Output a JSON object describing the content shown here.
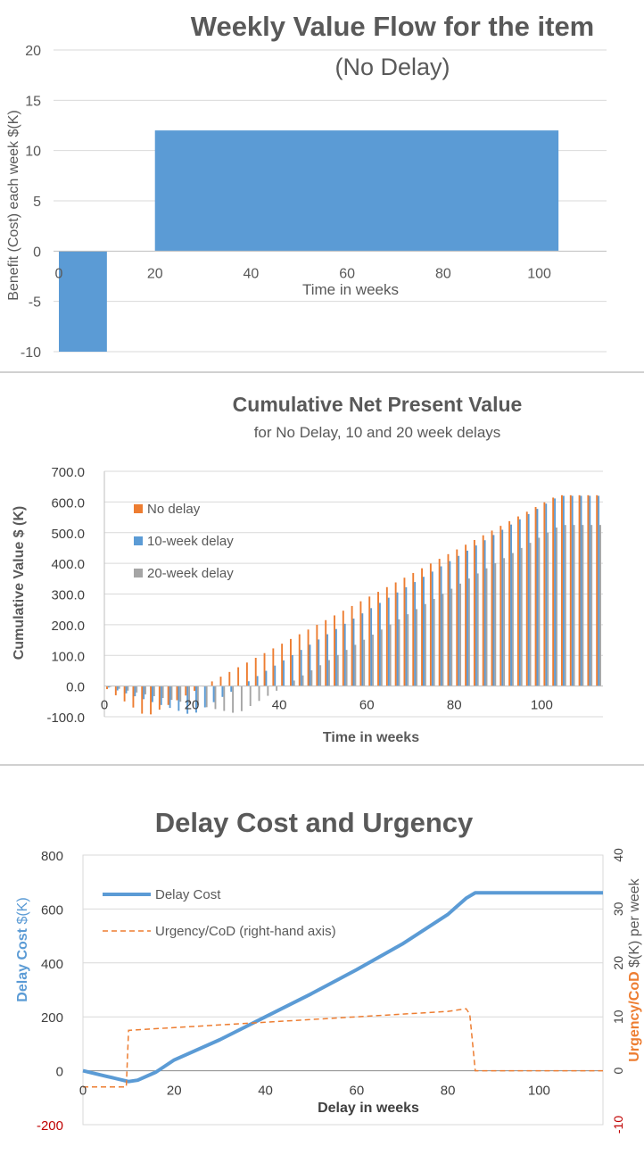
{
  "colors": {
    "blue": "#5b9bd5",
    "orange": "#ed7d31",
    "gray": "#a5a5a5",
    "red": "#c00000",
    "title_gray": "#595959",
    "grid": "#d9d9d9"
  },
  "chart_data": [
    {
      "type": "bar",
      "title": "Weekly Value Flow for the item",
      "subtitle": "(No Delay)",
      "xlabel": "Time in weeks",
      "ylabel": "Benefit (Cost) each week  $(K)",
      "xlim": [
        0,
        114
      ],
      "ylim": [
        -10,
        20
      ],
      "xticks": [
        0,
        20,
        40,
        60,
        80,
        100
      ],
      "yticks": [
        20,
        15,
        10,
        5,
        0,
        -5,
        -10
      ],
      "grid": true,
      "segments": [
        {
          "x_start": 0,
          "x_end": 10,
          "value": -10
        },
        {
          "x_start": 20,
          "x_end": 104,
          "value": 12
        }
      ]
    },
    {
      "type": "bar",
      "title": "Cumulative Net Present Value",
      "subtitle": "for No Delay, 10 and 20 week delays",
      "xlabel": "Time in weeks",
      "ylabel": "Cumulative Value  $ (K)",
      "xlim": [
        0,
        114
      ],
      "ylim": [
        -100,
        700
      ],
      "xticks": [
        0,
        20,
        40,
        60,
        80,
        100
      ],
      "yticks": [
        "700.0",
        "600.0",
        "500.0",
        "400.0",
        "300.0",
        "200.0",
        "100.0",
        "0.0",
        "-100.0"
      ],
      "legend_position": "top-left",
      "series": [
        {
          "name": "No delay",
          "delay_weeks": 0,
          "min_value": -100,
          "final_value": 622
        },
        {
          "name": "10-week delay",
          "delay_weeks": 10,
          "min_value": -95,
          "final_value": 620
        },
        {
          "name": "20-week delay",
          "delay_weeks": 20,
          "min_value": -90,
          "final_value": 525
        }
      ]
    },
    {
      "type": "line",
      "title": "Delay Cost and Urgency",
      "xlabel": "Delay in weeks",
      "ylabel_left": "Delay Cost $(K)",
      "ylabel_right": "Urgency/CoD  $(K) per week",
      "xlim": [
        0,
        114
      ],
      "ylim": [
        -200,
        800
      ],
      "y2lim": [
        -10,
        40
      ],
      "xticks": [
        0,
        20,
        40,
        60,
        80,
        100
      ],
      "yticks": [
        800,
        600,
        400,
        200,
        0,
        -200
      ],
      "y2ticks": [
        40,
        30,
        20,
        10,
        0,
        -10
      ],
      "legend_position": "top-left",
      "series": [
        {
          "name": "Delay Cost",
          "axis": "left",
          "x": [
            0,
            5,
            10,
            12,
            16,
            20,
            30,
            40,
            50,
            60,
            70,
            80,
            84,
            86,
            100,
            114
          ],
          "y": [
            0,
            -20,
            -40,
            -35,
            -5,
            40,
            115,
            200,
            285,
            375,
            470,
            580,
            640,
            660,
            660,
            660
          ]
        },
        {
          "name": "Urgency/CoD (right-hand axis)",
          "axis": "right",
          "x": [
            0,
            9.5,
            10,
            20,
            40,
            60,
            80,
            84,
            84.8,
            86,
            100,
            114
          ],
          "y": [
            -3,
            -3,
            7.5,
            8,
            9,
            10,
            11,
            11.5,
            10.5,
            0,
            0,
            0
          ]
        }
      ]
    }
  ]
}
